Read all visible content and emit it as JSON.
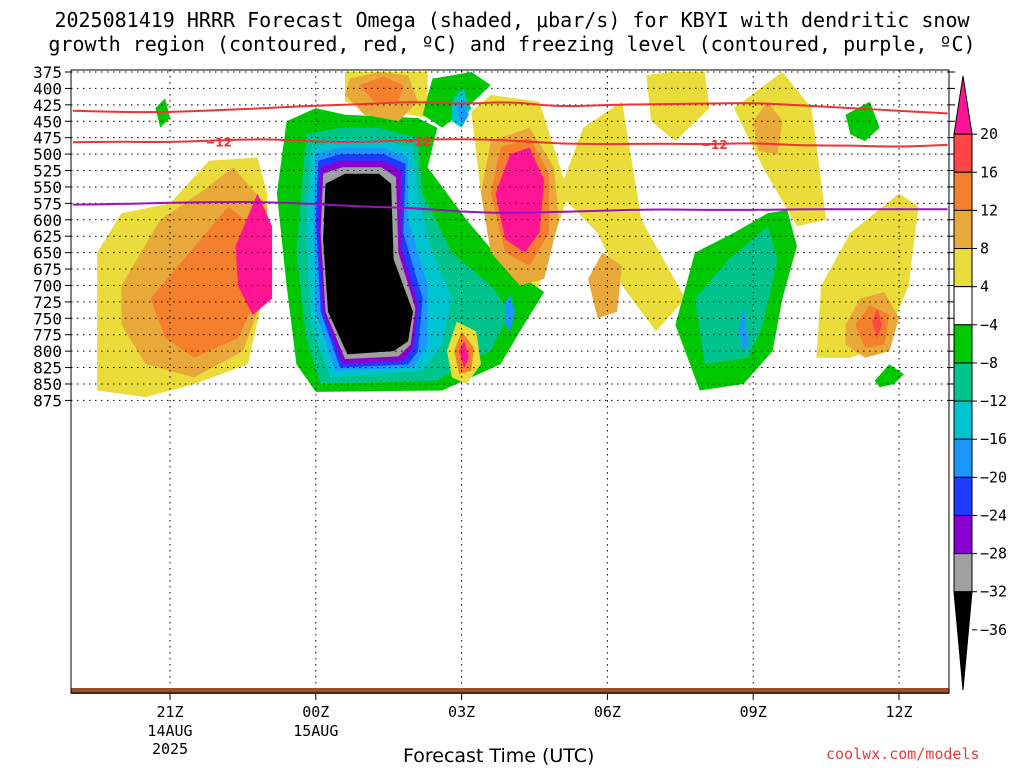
{
  "header": {
    "title_line1": "2025081419 HRRR Forecast Omega (shaded, μbar/s) for KBYI with dendritic snow",
    "title_line2": "growth region (contoured, red, ºC) and freezing level (contoured, purple, ºC)"
  },
  "footer": {
    "xlabel": "Forecast Time (UTC)",
    "credit": "coolwx.com/models"
  },
  "chart_data": {
    "type": "contour",
    "x_ticks": [
      {
        "label": "21Z",
        "sub": [
          "14AUG",
          "2025"
        ],
        "hours": 2
      },
      {
        "label": "00Z",
        "sub": [
          "15AUG"
        ],
        "hours": 5
      },
      {
        "label": "03Z",
        "sub": [],
        "hours": 8
      },
      {
        "label": "06Z",
        "sub": [],
        "hours": 11
      },
      {
        "label": "09Z",
        "sub": [],
        "hours": 14
      },
      {
        "label": "12Z",
        "sub": [],
        "hours": 17
      }
    ],
    "xlim_hours": [
      0,
      18
    ],
    "y_levels": [
      375,
      400,
      425,
      450,
      475,
      500,
      525,
      550,
      575,
      600,
      625,
      650,
      675,
      700,
      725,
      750,
      775,
      800,
      825,
      850,
      875
    ],
    "y_inverted": true,
    "grid": true,
    "colorbar": {
      "labels": [
        "20",
        "16",
        "12",
        "8",
        "4",
        "-4",
        "-8",
        "-12",
        "-16",
        "-20",
        "-24",
        "-28",
        "-32",
        "-36"
      ],
      "colors": [
        "#ff1493",
        "#ff4545",
        "#f47f2c",
        "#e8a93a",
        "#eadc3a",
        "#ffffff",
        "#00c800",
        "#00c48c",
        "#00c3d0",
        "#1e96ff",
        "#1e3cff",
        "#8a00d0",
        "#a0a0a0",
        "#000000"
      ]
    },
    "omega_features": [
      {
        "name": "strong ascent core",
        "hours": [
          5.0,
          7.6
        ],
        "levels": [
          515,
          835
        ],
        "min": -36
      },
      {
        "name": "descent maximum east",
        "hours": [
          8.5,
          9.8
        ],
        "levels": [
          465,
          640
        ],
        "max": 20
      },
      {
        "name": "descent maximum west",
        "hours": [
          3.2,
          4.4
        ],
        "levels": [
          545,
          740
        ],
        "max": 20
      },
      {
        "name": "descent maximum low",
        "hours": [
          7.8,
          8.3
        ],
        "levels": [
          770,
          830
        ],
        "max": 20
      },
      {
        "name": "descent maximum right",
        "hours": [
          16.3,
          16.7
        ],
        "levels": [
          730,
          790
        ],
        "max": 16
      },
      {
        "name": "ascent area",
        "hours": [
          12.5,
          15.3
        ],
        "levels": [
          580,
          860
        ],
        "min": -16
      }
    ],
    "contours": [
      {
        "name": "-12 upper",
        "color": "#ee3333",
        "label": "",
        "hours": [
          0,
          1,
          2,
          3,
          4,
          5,
          6,
          7,
          8,
          9,
          10,
          11,
          12,
          13,
          14,
          15,
          16,
          17,
          18
        ],
        "levels": [
          434,
          436,
          436,
          433,
          430,
          426,
          424,
          420,
          424,
          420,
          428,
          425,
          424,
          423,
          422,
          426,
          430,
          434,
          438
        ]
      },
      {
        "name": "-12 lower",
        "color": "#ee3333",
        "label": "-12",
        "hours": [
          0,
          1,
          2,
          3,
          4,
          5,
          6,
          7,
          8,
          9,
          10,
          11,
          12,
          13,
          14,
          15,
          16,
          17,
          18
        ],
        "levels": [
          482,
          481,
          482,
          479,
          477,
          481,
          482,
          478,
          477,
          479,
          484,
          485,
          484,
          485,
          483,
          487,
          487,
          489,
          486
        ]
      },
      {
        "name": "0 freezing level",
        "color": "#9a12c0",
        "label": "",
        "hours": [
          0,
          1,
          2,
          3,
          4,
          5,
          6,
          7,
          8,
          9,
          10,
          11,
          12,
          13,
          14,
          15,
          16,
          17,
          18
        ],
        "levels": [
          577,
          576,
          574,
          573,
          573,
          576,
          580,
          582,
          588,
          590,
          588,
          586,
          584,
          585,
          585,
          584,
          584,
          584,
          584
        ]
      }
    ]
  }
}
